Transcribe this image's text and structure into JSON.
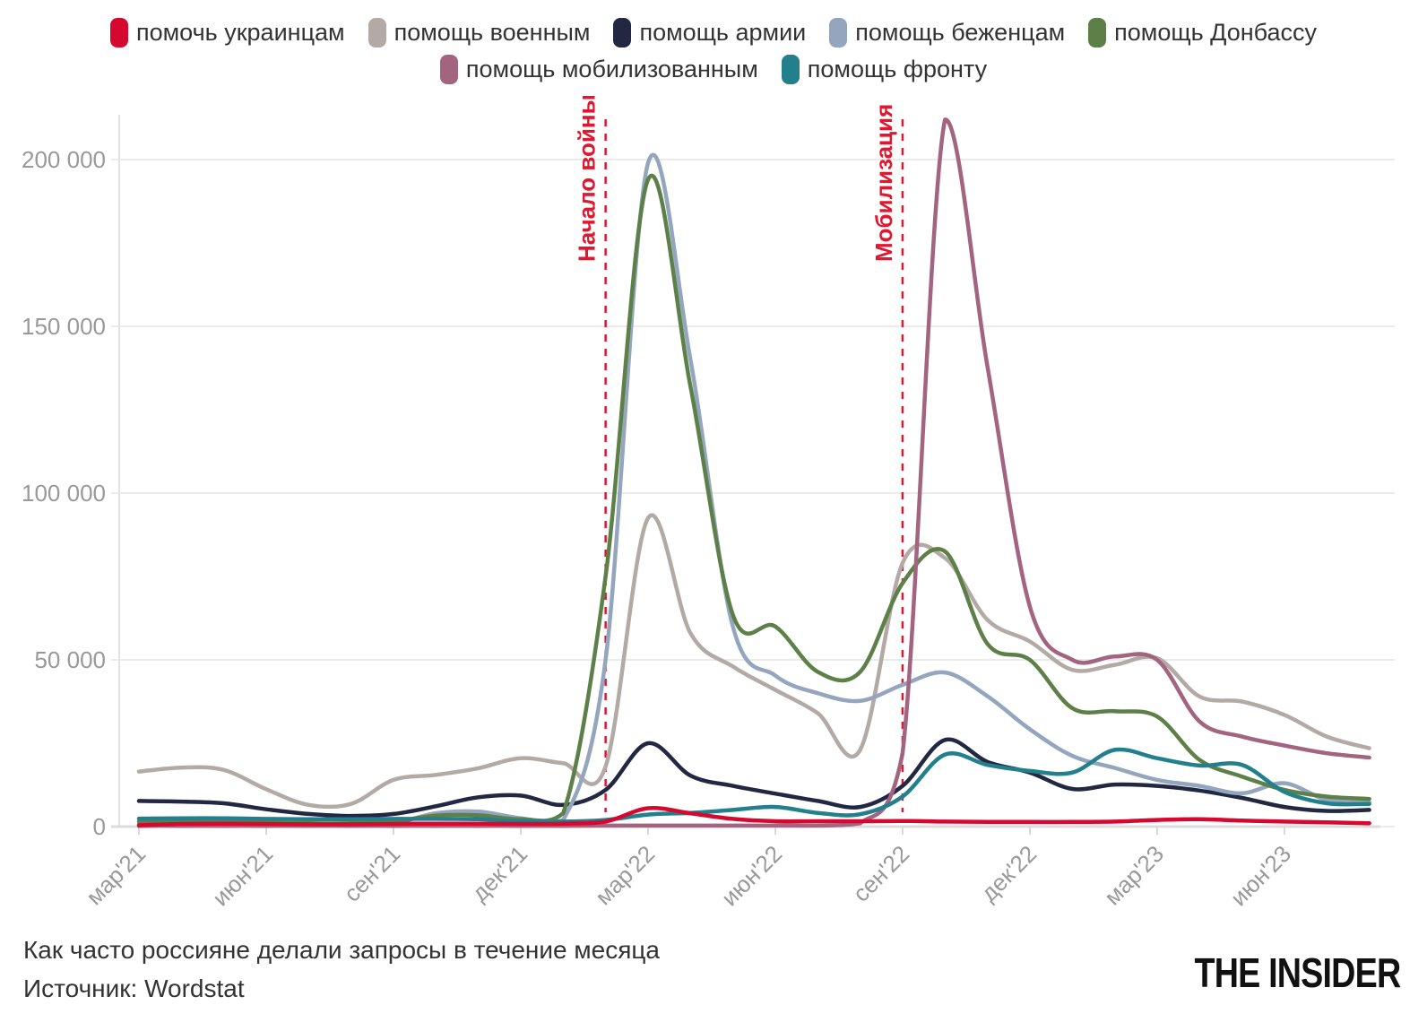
{
  "legend": {
    "rows": [
      [
        0,
        1,
        2,
        3,
        4
      ],
      [
        5,
        6
      ]
    ]
  },
  "caption": {
    "title": "Как часто россияне делали запросы в течение месяца",
    "source": "Источник: Wordstat"
  },
  "logo": {
    "text": "THE INSIDER"
  },
  "annotations": [
    {
      "label": "Начало войны",
      "month_index": 11,
      "color": "#e0172f"
    },
    {
      "label": "Мобилизация",
      "month_index": 18,
      "color": "#e0172f"
    }
  ],
  "chart_data": {
    "type": "line",
    "title": "Как часто россияне делали запросы в течение месяца",
    "xlabel": "",
    "ylabel": "",
    "ylim": [
      0,
      212000
    ],
    "grid": "horizontal",
    "legend_position": "top",
    "x": [
      "мар'21",
      "апр'21",
      "май'21",
      "июн'21",
      "июл'21",
      "авг'21",
      "сен'21",
      "окт'21",
      "ноя'21",
      "дек'21",
      "янв'22",
      "фев'22",
      "мар'22",
      "апр'22",
      "май'22",
      "июн'22",
      "июл'22",
      "авг'22",
      "сен'22",
      "окт'22",
      "ноя'22",
      "дек'22",
      "янв'23",
      "фев'23",
      "мар'23",
      "апр'23",
      "май'23",
      "июн'23",
      "июл'23",
      "авг'23"
    ],
    "x_tick_indices": [
      0,
      3,
      6,
      9,
      12,
      15,
      18,
      21,
      24,
      27
    ],
    "y_ticks": [
      {
        "value": 0,
        "label": "0"
      },
      {
        "value": 50000,
        "label": "50 000"
      },
      {
        "value": 100000,
        "label": "100 000"
      },
      {
        "value": 150000,
        "label": "150 000"
      },
      {
        "value": 200000,
        "label": "200 000"
      }
    ],
    "series": [
      {
        "name": "помочь украинцам",
        "color": "#d6082f",
        "values": [
          400,
          800,
          900,
          800,
          700,
          700,
          800,
          900,
          900,
          800,
          900,
          1500,
          5500,
          4000,
          2300,
          1600,
          1600,
          1600,
          1700,
          1500,
          1400,
          1400,
          1400,
          1500,
          2000,
          2200,
          1800,
          1500,
          1300,
          1000
        ]
      },
      {
        "name": "помощь военным",
        "color": "#b4aaa5",
        "values": [
          16500,
          17700,
          17000,
          11200,
          6500,
          6800,
          14000,
          15500,
          17500,
          20500,
          19000,
          18000,
          92500,
          58000,
          48000,
          41000,
          34000,
          23000,
          79000,
          80500,
          62000,
          55500,
          47000,
          48500,
          50500,
          39000,
          37500,
          33500,
          27000,
          23500
        ]
      },
      {
        "name": "помощь армии",
        "color": "#222742",
        "values": [
          7700,
          7500,
          7000,
          5200,
          3800,
          3200,
          3800,
          6100,
          8800,
          9300,
          6500,
          11000,
          25000,
          15300,
          12200,
          9900,
          7700,
          5900,
          12200,
          26000,
          19400,
          16200,
          11300,
          12600,
          12200,
          10800,
          8600,
          5900,
          4700,
          5000
        ]
      },
      {
        "name": "помощь беженцам",
        "color": "#94a5be",
        "values": [
          800,
          800,
          800,
          700,
          700,
          700,
          1000,
          4000,
          4500,
          2500,
          2000,
          50000,
          199000,
          140000,
          60000,
          45300,
          40000,
          37700,
          42500,
          46200,
          39100,
          29200,
          21200,
          17600,
          14000,
          12200,
          10000,
          13000,
          8000,
          7300
        ]
      },
      {
        "name": "помощь Донбассу",
        "color": "#5d8049",
        "values": [
          1500,
          1500,
          1400,
          1200,
          1000,
          1000,
          1500,
          3300,
          3400,
          2200,
          4000,
          75000,
          194000,
          132000,
          63500,
          60000,
          46400,
          46400,
          73000,
          82500,
          54800,
          50000,
          35500,
          34600,
          33000,
          20000,
          15000,
          11000,
          9000,
          8300
        ]
      },
      {
        "name": "помощь мобилизованным",
        "color": "#a2647f",
        "values": [
          200,
          200,
          200,
          200,
          200,
          200,
          200,
          200,
          200,
          200,
          200,
          300,
          300,
          300,
          300,
          300,
          300,
          1000,
          22000,
          212000,
          138000,
          66000,
          50000,
          51000,
          50000,
          31500,
          27000,
          24300,
          22000,
          20700
        ]
      },
      {
        "name": "помощь фронту",
        "color": "#22808d",
        "values": [
          2400,
          2500,
          2500,
          2300,
          2200,
          2200,
          2300,
          2300,
          2200,
          1600,
          1500,
          2000,
          3600,
          4100,
          5000,
          5900,
          4100,
          3700,
          9000,
          21600,
          18500,
          16700,
          16200,
          23000,
          20500,
          18300,
          18500,
          10400,
          7000,
          6800
        ]
      }
    ],
    "style": {
      "axis_color": "#e2e2e2",
      "grid_color": "#ebebeb",
      "tick_label_color": "#999999",
      "line_width": 4.5
    }
  }
}
